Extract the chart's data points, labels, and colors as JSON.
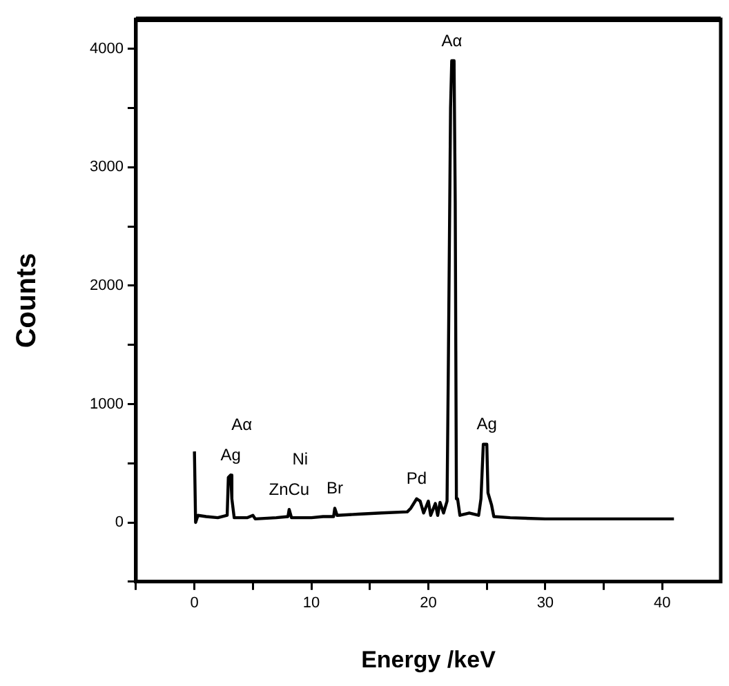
{
  "chart_data": {
    "type": "line",
    "xlabel": "Energy /keV",
    "ylabel": "Counts",
    "xlim": [
      -5,
      45
    ],
    "ylim": [
      -500,
      4250
    ],
    "xticks": [
      {
        "value": -5,
        "label": null
      },
      0,
      {
        "value": 5,
        "label": null
      },
      10,
      {
        "value": 15,
        "label": null
      },
      20,
      {
        "value": 25,
        "label": null
      },
      30,
      {
        "value": 35,
        "label": null
      },
      40
    ],
    "yticks": [
      {
        "value": -500,
        "label": null
      },
      0,
      {
        "value": 500,
        "label": null
      },
      1000,
      {
        "value": 1500,
        "label": null
      },
      2000,
      {
        "value": 2500,
        "label": null
      },
      3000,
      {
        "value": 3500,
        "label": null
      },
      4000
    ],
    "grid": false,
    "legend": false,
    "marker": "none",
    "line_style": "solid",
    "series": [
      {
        "color": "#000000",
        "x": [
          0,
          0.1,
          0.3,
          1,
          2,
          2.8,
          2.9,
          3.1,
          3.2,
          3.4,
          4.5,
          5,
          5.2,
          7,
          8,
          8.1,
          8.3,
          10,
          11,
          11.9,
          12,
          12.2,
          14,
          16,
          18.2,
          18.5,
          19,
          19.3,
          19.6,
          20,
          20.2,
          20.6,
          20.8,
          21,
          21.3,
          21.6,
          21.7,
          21.9,
          22,
          22.2,
          22.3,
          22.4,
          22.5,
          22.7,
          23.5,
          24.3,
          24.5,
          24.7,
          25,
          25.1,
          25.4,
          25.6,
          27,
          30,
          35,
          41
        ],
        "values": [
          600,
          0,
          60,
          50,
          40,
          60,
          380,
          400,
          200,
          40,
          40,
          60,
          30,
          40,
          50,
          110,
          40,
          40,
          50,
          50,
          120,
          60,
          70,
          80,
          90,
          120,
          200,
          180,
          80,
          180,
          60,
          160,
          60,
          170,
          80,
          180,
          1200,
          3500,
          3900,
          3900,
          2700,
          200,
          200,
          60,
          80,
          60,
          200,
          660,
          660,
          250,
          150,
          50,
          40,
          30,
          30,
          30
        ]
      }
    ],
    "annotations": [
      {
        "text": "Aα",
        "x": 22,
        "y": 3900
      },
      {
        "text": "Ag",
        "x": 3.1,
        "y": 400
      },
      {
        "text": "Aα",
        "x": 3.1,
        "y": 400
      },
      {
        "text": "ZnCu",
        "x": 8.1,
        "y": 110
      },
      {
        "text": "Ni",
        "x": 8.1,
        "y": 110
      },
      {
        "text": "Br",
        "x": 12,
        "y": 120
      },
      {
        "text": "Pd",
        "x": 19,
        "y": 200
      },
      {
        "text": "Ag",
        "x": 25,
        "y": 660
      }
    ]
  }
}
